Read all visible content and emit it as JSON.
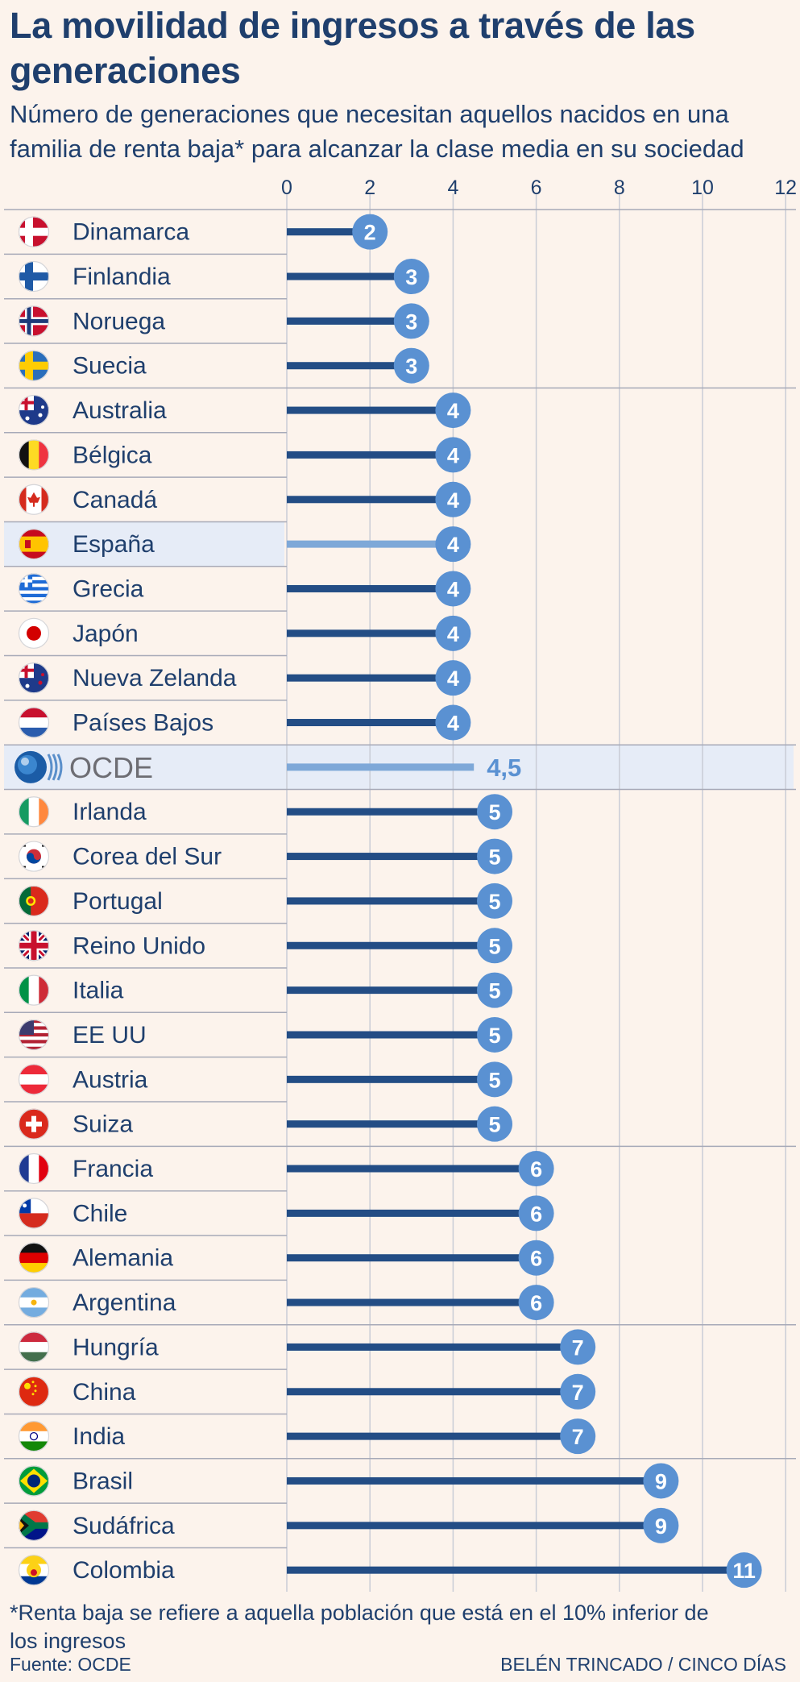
{
  "title": "La movilidad de ingresos a través de las generaciones",
  "subtitle": "Número de generaciones que necesitan aquellos nacidos en una familia de renta baja* para alcanzar la clase media en su sociedad",
  "footnote": "*Renta baja se refiere a aquella población que está en el 10% inferior de los ingresos",
  "source": "Fuente: OCDE",
  "credit": "BELÉN TRINCADO / CINCO DÍAS",
  "colors": {
    "background": "#fcf3ec",
    "text": "#1f3f6d",
    "bar": "#234d85",
    "bar_highlight": "#7ea8d8",
    "bubble": "#5a91d2",
    "highlight_row": "#e6ecf7",
    "grid": "#c9ccd6",
    "separator": "#a7aab8"
  },
  "chart_data": {
    "type": "bar",
    "orientation": "horizontal",
    "xlim": [
      0,
      12
    ],
    "xticks": [
      "0",
      "2",
      "4",
      "6",
      "8",
      "10",
      "12"
    ],
    "grid": true,
    "highlighted": [
      "España",
      "OCDE"
    ],
    "categories": [
      "Dinamarca",
      "Finlandia",
      "Noruega",
      "Suecia",
      "Australia",
      "Bélgica",
      "Canadá",
      "España",
      "Grecia",
      "Japón",
      "Nueva Zelanda",
      "Países Bajos",
      "OCDE",
      "Irlanda",
      "Corea del Sur",
      "Portugal",
      "Reino Unido",
      "Italia",
      "EE UU",
      "Austria",
      "Suiza",
      "Francia",
      "Chile",
      "Alemania",
      "Argentina",
      "Hungría",
      "China",
      "India",
      "Brasil",
      "Sudáfrica",
      "Colombia"
    ],
    "values": [
      2,
      3,
      3,
      3,
      4,
      4,
      4,
      4,
      4,
      4,
      4,
      4,
      4.5,
      5,
      5,
      5,
      5,
      5,
      5,
      5,
      5,
      6,
      6,
      6,
      6,
      7,
      7,
      7,
      9,
      9,
      11
    ],
    "value_labels": [
      "2",
      "3",
      "3",
      "3",
      "4",
      "4",
      "4",
      "4",
      "4",
      "4",
      "4",
      "4",
      "4,5",
      "5",
      "5",
      "5",
      "5",
      "5",
      "5",
      "5",
      "5",
      "6",
      "6",
      "6",
      "6",
      "7",
      "7",
      "7",
      "9",
      "9",
      "11"
    ],
    "flags": [
      "denmark-flag-icon",
      "finland-flag-icon",
      "norway-flag-icon",
      "sweden-flag-icon",
      "australia-flag-icon",
      "belgium-flag-icon",
      "canada-flag-icon",
      "spain-flag-icon",
      "greece-flag-icon",
      "japan-flag-icon",
      "new-zealand-flag-icon",
      "netherlands-flag-icon",
      "oecd-logo-icon",
      "ireland-flag-icon",
      "south-korea-flag-icon",
      "portugal-flag-icon",
      "united-kingdom-flag-icon",
      "italy-flag-icon",
      "usa-flag-icon",
      "austria-flag-icon",
      "switzerland-flag-icon",
      "france-flag-icon",
      "chile-flag-icon",
      "germany-flag-icon",
      "argentina-flag-icon",
      "hungary-flag-icon",
      "china-flag-icon",
      "india-flag-icon",
      "brazil-flag-icon",
      "south-africa-flag-icon",
      "colombia-flag-icon"
    ]
  }
}
